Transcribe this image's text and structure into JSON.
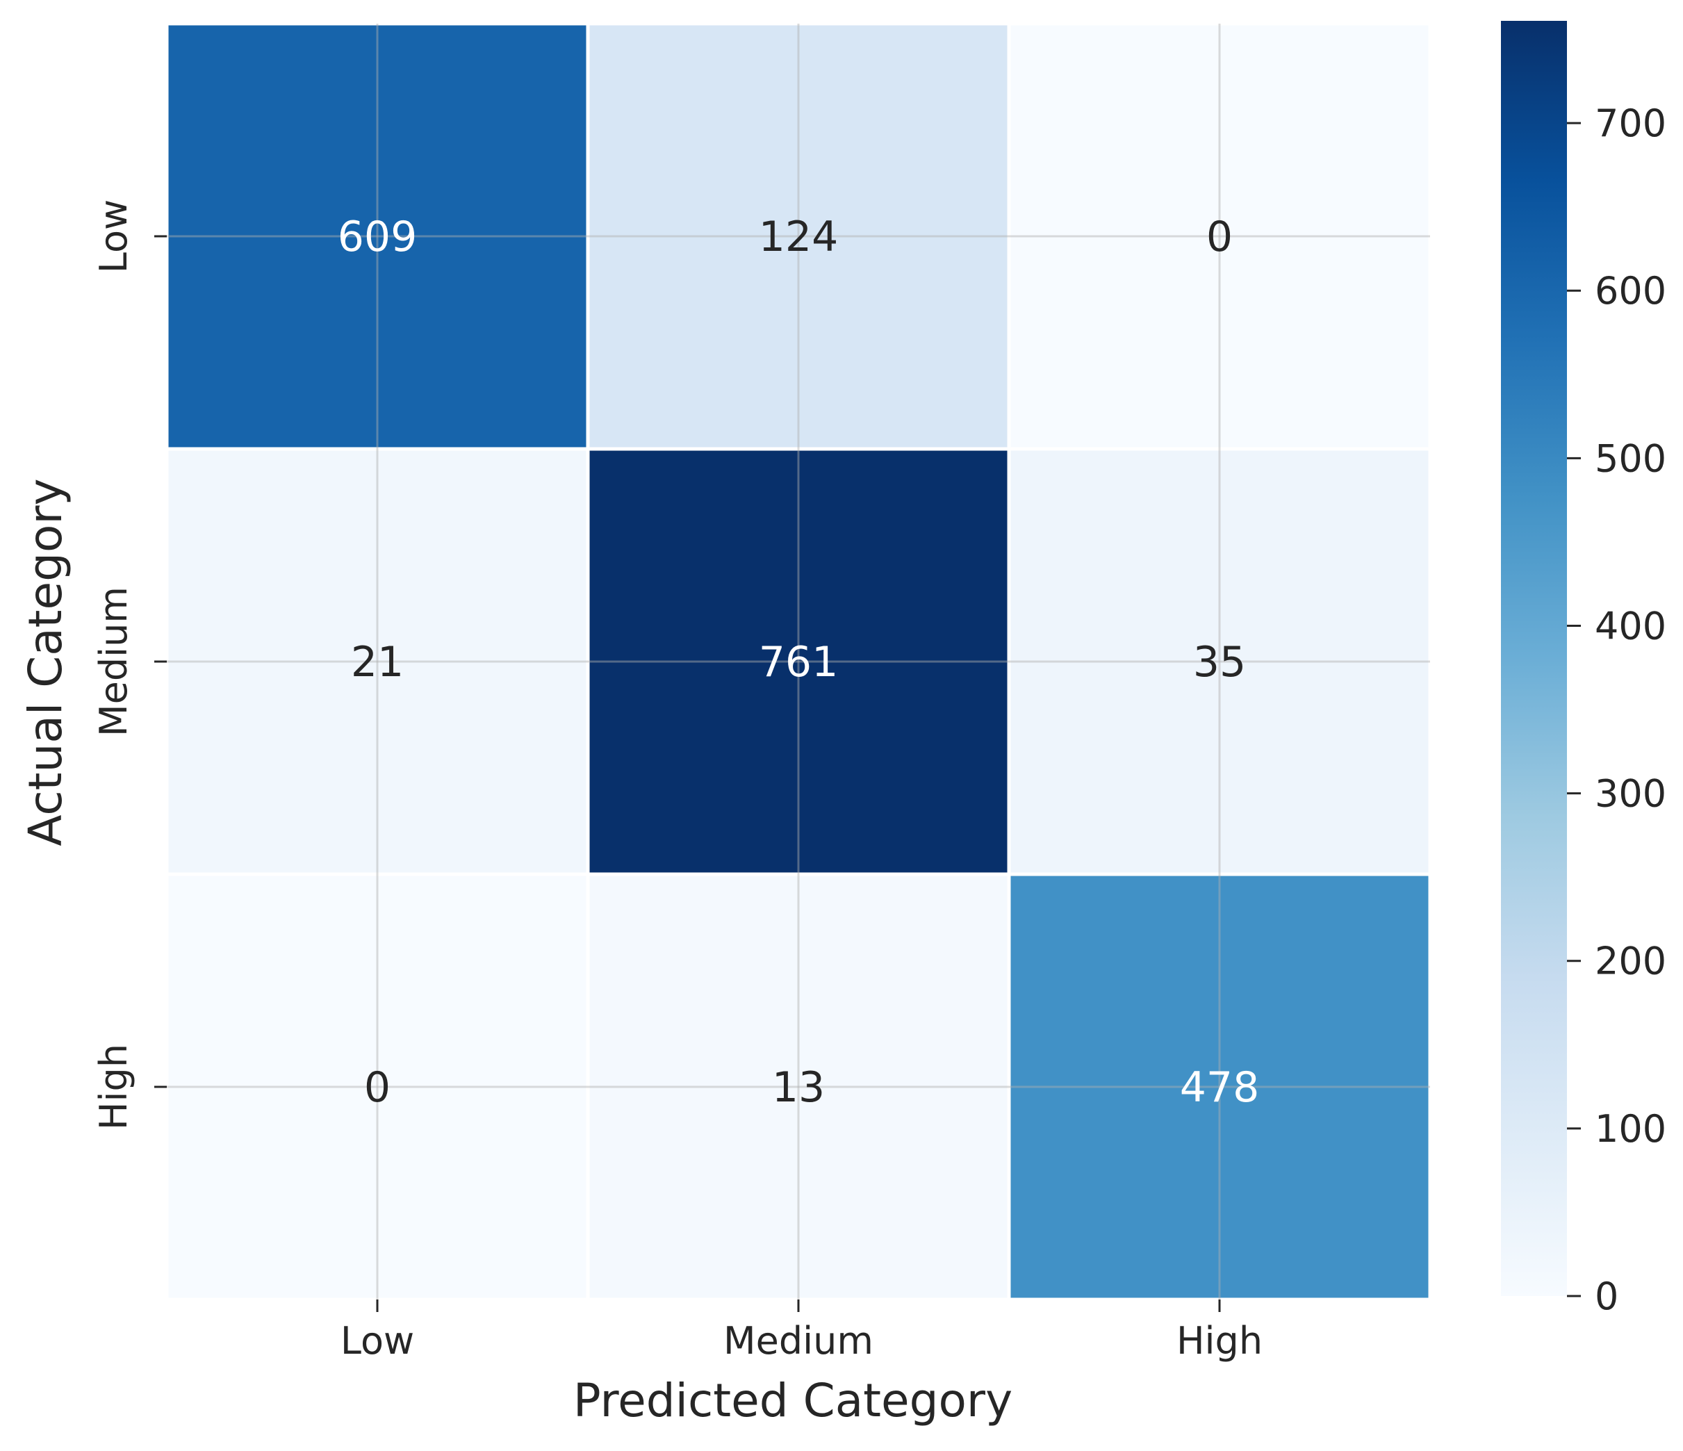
{
  "chart_data": {
    "type": "heatmap",
    "title": "",
    "xlabel": "Predicted Category",
    "ylabel": "Actual Category",
    "x_categories": [
      "Low",
      "Medium",
      "High"
    ],
    "y_categories": [
      "Low",
      "Medium",
      "High"
    ],
    "values": [
      [
        609,
        124,
        0
      ],
      [
        21,
        761,
        35
      ],
      [
        0,
        13,
        478
      ]
    ],
    "colorbar": {
      "range": [
        0,
        761
      ],
      "ticks": [
        "0",
        "100",
        "200",
        "300",
        "400",
        "500",
        "600",
        "700"
      ]
    },
    "colormap": "Blues",
    "grid": true
  }
}
